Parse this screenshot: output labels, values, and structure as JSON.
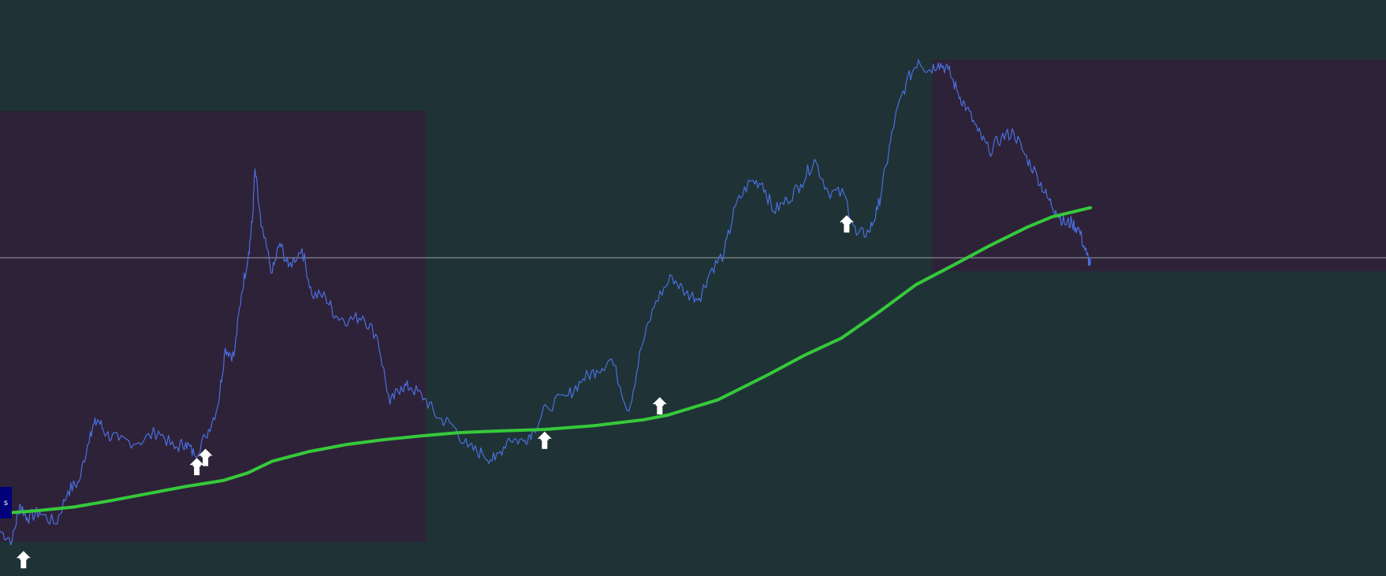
{
  "colors": {
    "background": "#1f3336",
    "zone_fill": "#2e2238",
    "price_line": "#4a6fe0",
    "moving_average": "#36c93a",
    "hline": "#9aa3a8",
    "arrow": "#ffffff",
    "badge": "#00007a"
  },
  "badge": {
    "text": "s"
  },
  "chart_data": {
    "type": "line",
    "title": "",
    "xlabel": "",
    "ylabel": "",
    "x_range": [
      0,
      100
    ],
    "y_range": [
      0,
      100
    ],
    "grid": false,
    "legend": "none",
    "horizontal_line": {
      "y": 54.3
    },
    "shaded_zones": [
      {
        "x_start": 0,
        "x_end": 34.4,
        "y_low": 1.5,
        "y_high": 81.6
      },
      {
        "x_start": 75.3,
        "x_end": 100,
        "y_low": 51.8,
        "y_high": 91.1
      }
    ],
    "series": [
      {
        "role": "price",
        "x": [
          0,
          1.0,
          1.6,
          2.2,
          3.2,
          4.5,
          5.5,
          6.4,
          7.3,
          7.9,
          8.6,
          9.6,
          11.2,
          12.8,
          14.1,
          15.0,
          15.7,
          16.6,
          17.6,
          18.2,
          18.9,
          19.5,
          20.1,
          20.4,
          20.6,
          21.1,
          22.0,
          22.6,
          23.3,
          24.4,
          25.2,
          26.3,
          27.1,
          28.2,
          29.3,
          30.5,
          31.5,
          32.4,
          33.2,
          34.3,
          35.4,
          36.5,
          37.8,
          39.0,
          40.0,
          41.1,
          42.3,
          43.1,
          44.2,
          45.9,
          47.1,
          48.2,
          49.4,
          50.8,
          51.8,
          53.0,
          54.3,
          55.4,
          56.5,
          57.4,
          58.5,
          59.4,
          60.6,
          61.6,
          62.5,
          63.6,
          64.7,
          65.8,
          66.9,
          68.2,
          69.2,
          70.2,
          70.9,
          71.6,
          72.3,
          73.2,
          74.2,
          75.0,
          75.8,
          76.6,
          77.4,
          78.1,
          79.0,
          79.9,
          80.9,
          81.9,
          82.8,
          83.8,
          84.6,
          85.3,
          86.0,
          86.6,
          87.2,
          87.8,
          88.1
        ],
        "y": [
          3.5,
          1.8,
          8.5,
          6.0,
          7.0,
          4.8,
          11.0,
          12.7,
          22.0,
          24.2,
          21.5,
          20.4,
          20.0,
          22.1,
          18.8,
          20.0,
          17.7,
          21.0,
          26.8,
          37.5,
          36.0,
          47.5,
          55.5,
          61.5,
          70.8,
          60.0,
          51.5,
          57.0,
          52.6,
          56.0,
          47.4,
          47.1,
          43.5,
          42.7,
          43.5,
          39.5,
          27.1,
          30.4,
          30.2,
          28.2,
          24.5,
          23.4,
          19.1,
          17.8,
          16.7,
          20.8,
          20.2,
          22.3,
          26.6,
          28.7,
          31.8,
          33.4,
          35.5,
          25.8,
          37.5,
          46.3,
          50.8,
          47.7,
          46.8,
          51.9,
          55.1,
          63.8,
          68.5,
          68.2,
          62.9,
          65.0,
          68.0,
          72.6,
          66.6,
          66.1,
          58.5,
          59.1,
          63.2,
          71.5,
          80.1,
          86.7,
          91.1,
          89.1,
          90.5,
          89.3,
          84.9,
          82.1,
          77.8,
          74.1,
          76.6,
          77.6,
          73.4,
          69.5,
          65.5,
          63.1,
          60.7,
          60.8,
          59.4,
          54.8,
          53.0
        ]
      },
      {
        "role": "moving_average",
        "x": [
          0,
          3.0,
          6.0,
          9.0,
          12.0,
          15.0,
          18.0,
          20.0,
          22.0,
          25.0,
          28.0,
          31.0,
          34.0,
          37.0,
          40.0,
          44.0,
          48.0,
          52.0,
          54.0,
          58.0,
          62.0,
          65.0,
          68.0,
          71.0,
          74.0,
          77.0,
          80.0,
          83.0,
          85.0,
          88.1
        ],
        "y": [
          6.8,
          7.3,
          8.0,
          9.2,
          10.5,
          11.8,
          12.9,
          14.3,
          16.5,
          18.3,
          19.6,
          20.5,
          21.2,
          21.8,
          22.1,
          22.4,
          23.1,
          24.2,
          25.1,
          27.9,
          32.5,
          36.2,
          39.4,
          44.2,
          49.3,
          52.9,
          56.6,
          60.0,
          61.9,
          63.6
        ]
      }
    ],
    "markers": [
      {
        "type": "up-arrow",
        "x": 1.9,
        "y": -1.8
      },
      {
        "type": "up-arrow",
        "x": 15.9,
        "y": 15.5
      },
      {
        "type": "up-arrow",
        "x": 16.6,
        "y": 17.2
      },
      {
        "type": "up-arrow",
        "x": 44.0,
        "y": 20.4
      },
      {
        "type": "up-arrow",
        "x": 53.3,
        "y": 26.8
      },
      {
        "type": "up-arrow",
        "x": 68.4,
        "y": 60.6
      }
    ]
  }
}
